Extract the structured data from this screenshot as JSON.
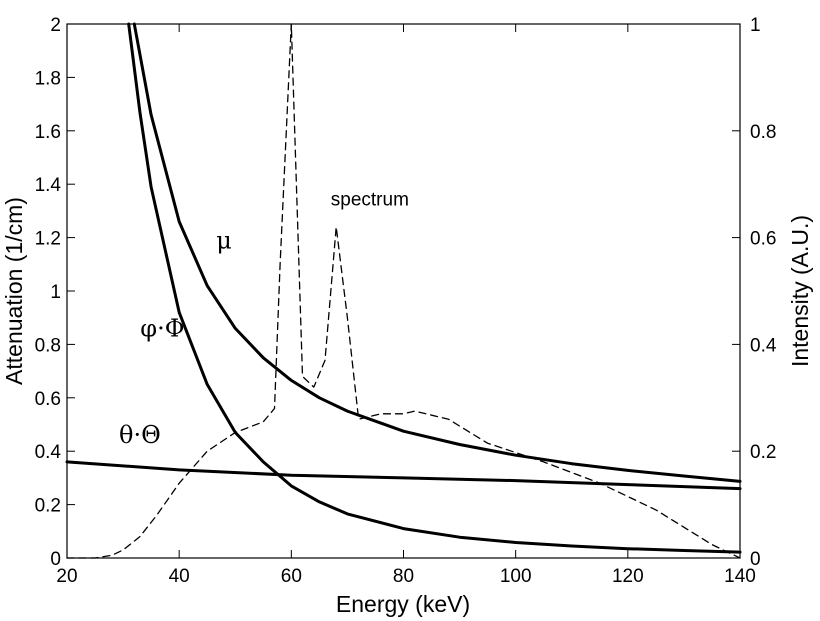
{
  "chart_data": {
    "type": "line",
    "xlabel": "Energy (keV)",
    "ylabel_left": "Attenuation (1/cm)",
    "ylabel_right": "Intensity (A.U.)",
    "xlim": [
      20,
      140
    ],
    "ylim_left": [
      0,
      2
    ],
    "ylim_right": [
      0,
      1
    ],
    "x_ticks": [
      "20",
      "40",
      "60",
      "80",
      "100",
      "120",
      "140"
    ],
    "y_ticks_left": [
      "0",
      "0.2",
      "0.4",
      "0.6",
      "0.8",
      "1",
      "1.2",
      "1.4",
      "1.6",
      "1.8",
      "2"
    ],
    "y_ticks_right": [
      "0",
      "0.2",
      "0.4",
      "0.6",
      "0.8",
      "1"
    ],
    "grid": false,
    "series": [
      {
        "name": "μ",
        "axis": "left",
        "style": "solid",
        "x": [
          32,
          35,
          40,
          45,
          50,
          55,
          60,
          65,
          70,
          80,
          90,
          100,
          110,
          120,
          130,
          140
        ],
        "y": [
          2.0,
          1.66,
          1.26,
          1.02,
          0.86,
          0.75,
          0.665,
          0.6,
          0.55,
          0.475,
          0.425,
          0.385,
          0.353,
          0.328,
          0.307,
          0.287
        ]
      },
      {
        "name": "φ·Φ",
        "axis": "left",
        "style": "solid",
        "x": [
          31,
          33,
          35,
          40,
          45,
          50,
          55,
          60,
          65,
          70,
          80,
          90,
          100,
          110,
          120,
          130,
          140
        ],
        "y": [
          2.0,
          1.67,
          1.39,
          0.92,
          0.65,
          0.47,
          0.36,
          0.27,
          0.21,
          0.165,
          0.11,
          0.078,
          0.058,
          0.045,
          0.035,
          0.028,
          0.022
        ]
      },
      {
        "name": "θ·Θ",
        "axis": "left",
        "style": "solid",
        "x": [
          20,
          40,
          60,
          80,
          100,
          120,
          140
        ],
        "y": [
          0.36,
          0.33,
          0.31,
          0.3,
          0.29,
          0.275,
          0.26
        ]
      },
      {
        "name": "spectrum",
        "axis": "right",
        "style": "dashed",
        "x": [
          20,
          25,
          28,
          30,
          33,
          36,
          40,
          45,
          50,
          55,
          57,
          58,
          60,
          62,
          64,
          66,
          68,
          70,
          72,
          76,
          80,
          82,
          88,
          95,
          105,
          115,
          125,
          135,
          140
        ],
        "y": [
          0.0,
          0.0,
          0.005,
          0.015,
          0.04,
          0.08,
          0.14,
          0.2,
          0.235,
          0.255,
          0.28,
          0.55,
          1.0,
          0.34,
          0.32,
          0.37,
          0.62,
          0.45,
          0.26,
          0.27,
          0.27,
          0.275,
          0.26,
          0.215,
          0.18,
          0.14,
          0.09,
          0.025,
          0.0
        ]
      }
    ],
    "annotations": [
      {
        "text": "spectrum",
        "x": 74,
        "y": 0.66,
        "axis": "right"
      },
      {
        "text": "μ",
        "x": 48,
        "y": 1.16,
        "axis": "left"
      },
      {
        "text": "φ·Φ",
        "x": 37,
        "y": 0.83,
        "axis": "left"
      },
      {
        "text": "θ·Θ",
        "x": 33,
        "y": 0.43,
        "axis": "left"
      }
    ]
  }
}
